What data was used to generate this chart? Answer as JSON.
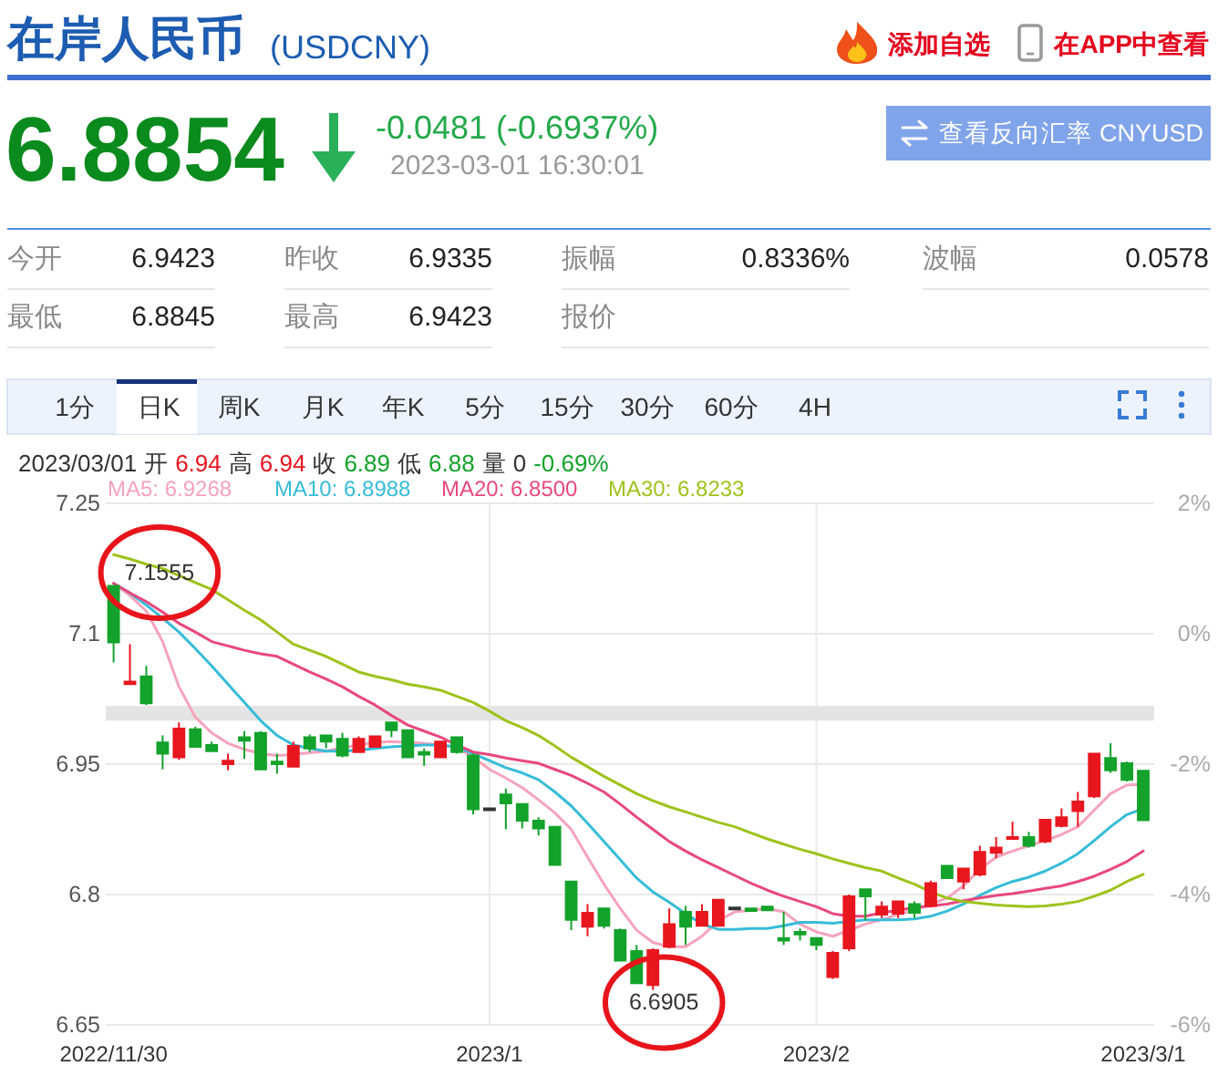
{
  "chart_data": {
    "type": "candlestick",
    "title": "在岸人民币",
    "subtitle": "(USDCNY)",
    "categories": [
      "2022/11/30",
      null,
      null,
      null,
      null,
      null,
      null,
      null,
      null,
      null,
      null,
      null,
      null,
      null,
      null,
      null,
      null,
      null,
      null,
      null,
      null,
      null,
      null,
      "2023/1",
      null,
      null,
      null,
      null,
      null,
      null,
      null,
      null,
      null,
      null,
      null,
      null,
      null,
      null,
      null,
      null,
      null,
      null,
      null,
      "2023/2",
      null,
      null,
      null,
      null,
      null,
      null,
      null,
      null,
      null,
      null,
      null,
      null,
      null,
      null,
      null,
      null,
      null,
      null,
      null,
      "2023/3/1"
    ],
    "ohlc": [
      [
        7.155,
        7.1555,
        7.067,
        7.09
      ],
      [
        7.042,
        7.088,
        7.042,
        7.045
      ],
      [
        7.051,
        7.063,
        7.018,
        7.02
      ],
      [
        6.975,
        6.983,
        6.944,
        6.962
      ],
      [
        6.958,
        6.998,
        6.955,
        6.991
      ],
      [
        6.99,
        6.993,
        6.969,
        6.97
      ],
      [
        6.972,
        6.976,
        6.964,
        6.965
      ],
      [
        6.95,
        6.962,
        6.943,
        6.954
      ],
      [
        6.981,
        6.988,
        6.956,
        6.977
      ],
      [
        6.986,
        6.988,
        6.943,
        6.944
      ],
      [
        6.953,
        6.962,
        6.939,
        6.95
      ],
      [
        6.947,
        6.976,
        6.946,
        6.971
      ],
      [
        6.981,
        6.984,
        6.964,
        6.968
      ],
      [
        6.983,
        6.983,
        6.968,
        6.976
      ],
      [
        6.979,
        6.986,
        6.958,
        6.96
      ],
      [
        6.964,
        6.982,
        6.964,
        6.979
      ],
      [
        6.97,
        6.983,
        6.969,
        6.982
      ],
      [
        6.998,
        6.999,
        6.981,
        6.989
      ],
      [
        6.989,
        6.989,
        6.958,
        6.958
      ],
      [
        6.964,
        6.968,
        6.948,
        6.961
      ],
      [
        6.958,
        6.976,
        6.958,
        6.976
      ],
      [
        6.981,
        6.982,
        6.962,
        6.964
      ],
      [
        6.96,
        6.962,
        6.892,
        6.898
      ],
      [
        6.899,
        6.899,
        6.899,
        6.899
      ],
      [
        6.915,
        6.922,
        6.875,
        6.905
      ],
      [
        6.904,
        6.905,
        6.876,
        6.885
      ],
      [
        6.885,
        6.889,
        6.868,
        6.876
      ],
      [
        6.878,
        6.878,
        6.833,
        6.834
      ],
      [
        6.815,
        6.816,
        6.759,
        6.771
      ],
      [
        6.763,
        6.789,
        6.752,
        6.779
      ],
      [
        6.784,
        6.785,
        6.761,
        6.764
      ],
      [
        6.759,
        6.761,
        6.723,
        6.724
      ],
      [
        6.735,
        6.742,
        6.698,
        6.698
      ],
      [
        6.696,
        6.738,
        6.6905,
        6.736
      ],
      [
        6.74,
        6.784,
        6.738,
        6.766
      ],
      [
        6.78,
        6.787,
        6.742,
        6.763
      ],
      [
        6.764,
        6.789,
        6.763,
        6.78
      ],
      [
        6.764,
        6.795,
        6.764,
        6.794
      ],
      [
        6.785,
        6.785,
        6.785,
        6.785
      ],
      [
        6.784,
        6.784,
        6.781,
        6.781
      ],
      [
        6.786,
        6.786,
        6.782,
        6.782
      ],
      [
        6.75,
        6.78,
        6.742,
        6.747
      ],
      [
        6.757,
        6.761,
        6.747,
        6.754
      ],
      [
        6.75,
        6.75,
        6.736,
        6.742
      ],
      [
        6.705,
        6.735,
        6.703,
        6.733
      ],
      [
        6.738,
        6.8,
        6.735,
        6.798
      ],
      [
        6.806,
        6.806,
        6.77,
        6.798
      ],
      [
        6.777,
        6.792,
        6.773,
        6.786
      ],
      [
        6.778,
        6.793,
        6.773,
        6.792
      ],
      [
        6.789,
        6.792,
        6.773,
        6.779
      ],
      [
        6.787,
        6.816,
        6.785,
        6.813
      ],
      [
        6.833,
        6.833,
        6.819,
        6.819
      ],
      [
        6.815,
        6.83,
        6.806,
        6.83
      ],
      [
        6.823,
        6.856,
        6.821,
        6.849
      ],
      [
        6.848,
        6.866,
        6.842,
        6.854
      ],
      [
        6.865,
        6.884,
        6.864,
        6.866
      ],
      [
        6.866,
        6.872,
        6.854,
        6.856
      ],
      [
        6.861,
        6.886,
        6.859,
        6.886
      ],
      [
        6.879,
        6.899,
        6.877,
        6.889
      ],
      [
        6.896,
        6.918,
        6.878,
        6.907
      ],
      [
        6.913,
        6.962,
        6.911,
        6.962
      ],
      [
        6.957,
        6.974,
        6.94,
        6.943
      ],
      [
        6.951,
        6.953,
        6.93,
        6.932
      ],
      [
        6.9423,
        6.9423,
        6.8845,
        6.8854
      ]
    ],
    "colors": [
      "#13a22b",
      "#e8161e",
      "#13a22b",
      "#13a22b",
      "#e8161e",
      "#13a22b",
      "#13a22b",
      "#e8161e",
      "#13a22b",
      "#13a22b",
      "#13a22b",
      "#e8161e",
      "#13a22b",
      "#13a22b",
      "#13a22b",
      "#e8161e",
      "#e8161e",
      "#13a22b",
      "#13a22b",
      "#13a22b",
      "#e8161e",
      "#13a22b",
      "#13a22b",
      "#333333",
      "#13a22b",
      "#13a22b",
      "#13a22b",
      "#13a22b",
      "#13a22b",
      "#e8161e",
      "#13a22b",
      "#13a22b",
      "#13a22b",
      "#e8161e",
      "#e8161e",
      "#13a22b",
      "#e8161e",
      "#e8161e",
      "#333333",
      "#13a22b",
      "#13a22b",
      "#13a22b",
      "#13a22b",
      "#13a22b",
      "#e8161e",
      "#e8161e",
      "#13a22b",
      "#e8161e",
      "#e8161e",
      "#13a22b",
      "#e8161e",
      "#13a22b",
      "#e8161e",
      "#e8161e",
      "#e8161e",
      "#e8161e",
      "#13a22b",
      "#e8161e",
      "#e8161e",
      "#e8161e",
      "#e8161e",
      "#13a22b",
      "#13a22b",
      "#13a22b"
    ],
    "series": [
      {
        "name": "MA5: 6.9268",
        "type": "line",
        "color": "#f5a3bb",
        "values": [
          7.158,
          7.144,
          7.126,
          7.091,
          7.039,
          7.004,
          6.986,
          6.974,
          6.967,
          6.962,
          6.96,
          6.961,
          6.963,
          6.965,
          6.969,
          6.972,
          6.975,
          6.976,
          6.975,
          6.974,
          6.972,
          6.969,
          6.958,
          6.944,
          6.934,
          6.923,
          6.909,
          6.894,
          6.875,
          6.843,
          6.812,
          6.784,
          6.759,
          6.745,
          6.74,
          6.74,
          6.752,
          6.77,
          6.78,
          6.782,
          6.784,
          6.78,
          6.766,
          6.757,
          6.752,
          6.759,
          6.766,
          6.771,
          6.777,
          6.782,
          6.789,
          6.796,
          6.81,
          6.829,
          6.843,
          6.85,
          6.856,
          6.862,
          6.869,
          6.878,
          6.897,
          6.916,
          6.926,
          6.9268
        ]
      },
      {
        "name": "MA10: 6.8988",
        "type": "line",
        "color": "#36bcd8",
        "values": [
          7.158,
          7.147,
          7.133,
          7.118,
          7.102,
          7.083,
          7.063,
          7.042,
          7.021,
          7.0,
          6.983,
          6.972,
          6.968,
          6.965,
          6.965,
          6.966,
          6.968,
          6.97,
          6.971,
          6.972,
          6.972,
          6.97,
          6.962,
          6.954,
          6.946,
          6.94,
          6.932,
          6.918,
          6.902,
          6.882,
          6.861,
          6.84,
          6.819,
          6.803,
          6.791,
          6.778,
          6.766,
          6.76,
          6.76,
          6.761,
          6.761,
          6.764,
          6.768,
          6.768,
          6.767,
          6.769,
          6.771,
          6.771,
          6.771,
          6.772,
          6.775,
          6.781,
          6.789,
          6.799,
          6.808,
          6.815,
          6.82,
          6.827,
          6.836,
          6.847,
          6.862,
          6.878,
          6.892,
          6.8988
        ]
      },
      {
        "name": "MA20: 6.8500",
        "type": "line",
        "color": "#e8487d",
        "values": [
          7.158,
          7.147,
          7.137,
          7.125,
          7.112,
          7.102,
          7.091,
          7.086,
          7.081,
          7.077,
          7.074,
          7.065,
          7.056,
          7.048,
          7.039,
          7.028,
          7.018,
          7.006,
          6.995,
          6.988,
          6.981,
          6.972,
          6.964,
          6.961,
          6.957,
          6.954,
          6.951,
          6.944,
          6.937,
          6.928,
          6.918,
          6.904,
          6.889,
          6.875,
          6.861,
          6.85,
          6.84,
          6.831,
          6.822,
          6.813,
          6.805,
          6.798,
          6.792,
          6.786,
          6.778,
          6.775,
          6.775,
          6.779,
          6.782,
          6.785,
          6.787,
          6.789,
          6.793,
          6.796,
          6.799,
          6.801,
          6.804,
          6.807,
          6.81,
          6.815,
          6.821,
          6.829,
          6.838,
          6.85
        ]
      },
      {
        "name": "MA30: 6.8233",
        "type": "line",
        "color": "#9dc31c",
        "values": [
          7.191,
          7.186,
          7.18,
          7.175,
          7.167,
          7.159,
          7.151,
          7.139,
          7.127,
          7.116,
          7.102,
          7.088,
          7.081,
          7.074,
          7.065,
          7.056,
          7.051,
          7.047,
          7.042,
          7.039,
          7.035,
          7.028,
          7.021,
          7.011,
          7.0,
          6.992,
          6.983,
          6.971,
          6.958,
          6.947,
          6.936,
          6.926,
          6.916,
          6.908,
          6.901,
          6.895,
          6.889,
          6.883,
          6.878,
          6.871,
          6.864,
          6.858,
          6.852,
          6.847,
          6.841,
          6.836,
          6.831,
          6.827,
          6.819,
          6.812,
          6.803,
          6.796,
          6.792,
          6.79,
          6.788,
          6.787,
          6.786,
          6.787,
          6.789,
          6.792,
          6.798,
          6.805,
          6.815,
          6.8233
        ]
      }
    ],
    "ylim": [
      6.65,
      7.25
    ],
    "yticks": [
      6.65,
      6.8,
      6.95,
      7.1,
      7.25
    ],
    "y2lim": [
      -6,
      2
    ],
    "y2ticks": [
      {
        "value": -6,
        "label": "-6%"
      },
      {
        "value": -4,
        "label": "-4%"
      },
      {
        "value": -2,
        "label": "-2%"
      },
      {
        "value": 0,
        "label": "0%"
      },
      {
        "value": 2,
        "label": "2%"
      }
    ],
    "grid": true,
    "legend": "top",
    "bands": [
      {
        "axis": "y",
        "from": 7.0,
        "to": 7.017,
        "color": "#e4e4e4"
      }
    ],
    "annotations": [
      "添加自选",
      "在APP中查看",
      "6.8854",
      "-0.0481 (-0.6937%)",
      "2023-03-01 16:30:01",
      "查看反向汇率 CNYUSD",
      "今开",
      "6.9423",
      "昨收",
      "6.9335",
      "振幅",
      "0.8336%",
      "波幅",
      "0.0578",
      "最低",
      "6.8845",
      "最高",
      "6.9423",
      "报价",
      "1分",
      "日K",
      "周K",
      "月K",
      "年K",
      "5分",
      "15分",
      "30分",
      "60分",
      "4H",
      "2023/03/01",
      "开",
      "6.94",
      "高",
      "6.94",
      "收",
      "6.89",
      "低",
      "6.88",
      "量",
      "0",
      "-0.69%",
      {
        "text": "7.1555",
        "x": "2022/11/30",
        "y": 7.1555
      },
      {
        "text": "6.6905",
        "y": 6.6905
      }
    ]
  }
}
